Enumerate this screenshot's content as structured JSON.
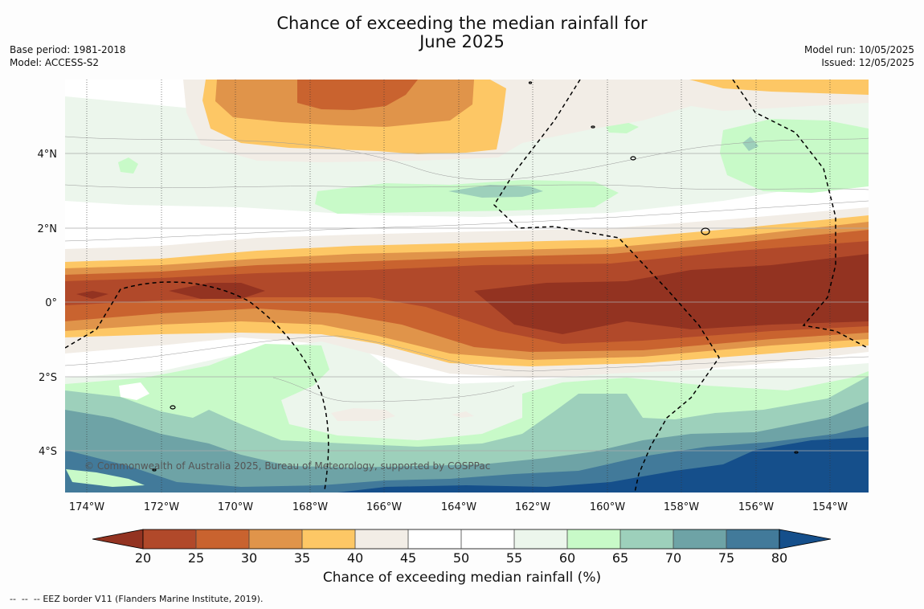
{
  "title_line1": "Chance of exceeding the median rainfall for",
  "title_line2": "June 2025",
  "meta_left": [
    "Base period: 1981-2018",
    "Model: ACCESS-S2"
  ],
  "meta_right": [
    "Model run: 10/05/2025",
    "Issued: 12/05/2025"
  ],
  "map": {
    "lon_ticks": [
      "174°W",
      "172°W",
      "170°W",
      "168°W",
      "166°W",
      "164°W",
      "162°W",
      "160°W",
      "158°W",
      "156°W",
      "154°W"
    ],
    "lat_ticks": [
      "4°N",
      "2°N",
      "0°",
      "2°S",
      "4°S"
    ],
    "copyright": "© Commonwealth of Australia 2025, Bureau of Meteorology, supported by COSPPac",
    "eez_label": "EEZ border V11 (Flanders Marine Institute, 2019)."
  },
  "colorbar": {
    "title": "Chance of exceeding median rainfall (%)",
    "ticks": [
      "20",
      "25",
      "30",
      "35",
      "40",
      "45",
      "50",
      "55",
      "60",
      "65",
      "70",
      "75",
      "80"
    ],
    "colors": [
      "#933321",
      "#b1492a",
      "#c9632f",
      "#e0944a",
      "#fdc765",
      "#f2ede6",
      "#ffffff",
      "#ffffff",
      "#ecf6ec",
      "#c8fac8",
      "#9dd0bb",
      "#6ea3a6",
      "#427a9a",
      "#154f8b"
    ]
  }
}
